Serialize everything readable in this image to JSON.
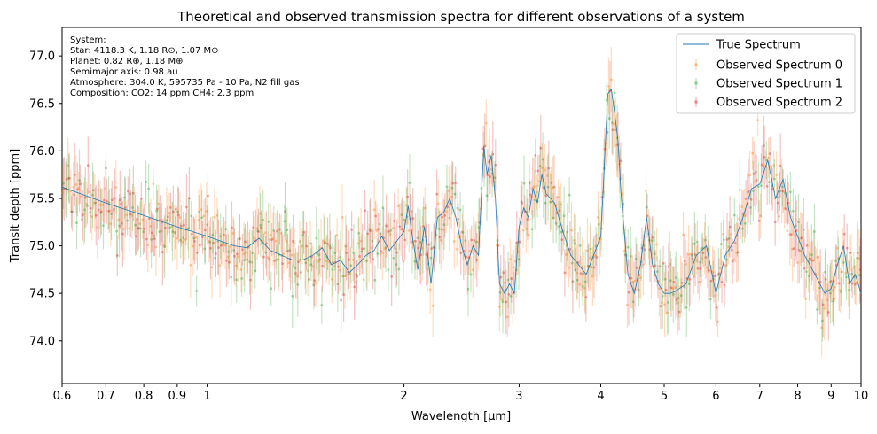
{
  "chart_data": {
    "type": "scatter",
    "title": "Theoretical and observed transmission spectra for different observations of a system",
    "xlabel": "Wavelength [μm]",
    "ylabel": "Transit depth [ppm]",
    "xscale": "log",
    "xlim": [
      0.6,
      10
    ],
    "ylim": [
      73.55,
      77.3
    ],
    "xticks": [
      0.6,
      0.7,
      0.8,
      0.9,
      1,
      2,
      3,
      4,
      5,
      6,
      7,
      8,
      9,
      10
    ],
    "xtick_labels": [
      "0.6",
      "0.7",
      "0.8",
      "0.9",
      "1",
      "2",
      "3",
      "4",
      "5",
      "6",
      "7",
      "8",
      "9",
      "10"
    ],
    "yticks": [
      74.0,
      74.5,
      75.0,
      75.5,
      76.0,
      76.5,
      77.0
    ],
    "ytick_labels": [
      "74.0",
      "74.5",
      "75.0",
      "75.5",
      "76.0",
      "76.5",
      "77.0"
    ],
    "grid": false,
    "legend_position": "top-right",
    "info_box": {
      "position": "top-left",
      "lines": [
        "System:",
        "Star: 4118.3 K, 1.18 R⊙, 1.07 M⊙",
        "Planet: 0.82 R⊕, 1.18 M⊕",
        "Semimajor axis: 0.98 au",
        "Atmosphere: 304.0 K, 595735 Pa - 10 Pa, N2 fill gas",
        "Composition: CO2: 14 ppm CH4: 2.3 ppm"
      ]
    },
    "true_spectrum": {
      "name": "True Spectrum",
      "color": "#1f77b4",
      "x": [
        0.6,
        0.7,
        0.8,
        0.9,
        1.0,
        1.05,
        1.1,
        1.15,
        1.2,
        1.25,
        1.3,
        1.35,
        1.4,
        1.45,
        1.5,
        1.55,
        1.6,
        1.65,
        1.7,
        1.75,
        1.8,
        1.85,
        1.9,
        1.95,
        2.0,
        2.03,
        2.06,
        2.1,
        2.15,
        2.2,
        2.25,
        2.3,
        2.35,
        2.4,
        2.45,
        2.5,
        2.55,
        2.6,
        2.65,
        2.68,
        2.72,
        2.76,
        2.8,
        2.85,
        2.9,
        2.95,
        3.0,
        3.05,
        3.1,
        3.15,
        3.2,
        3.25,
        3.3,
        3.35,
        3.4,
        3.5,
        3.6,
        3.7,
        3.8,
        3.9,
        4.0,
        4.1,
        4.15,
        4.2,
        4.25,
        4.3,
        4.35,
        4.4,
        4.5,
        4.6,
        4.7,
        4.8,
        4.9,
        5.0,
        5.1,
        5.2,
        5.4,
        5.6,
        5.8,
        6.0,
        6.2,
        6.4,
        6.6,
        6.8,
        7.0,
        7.2,
        7.4,
        7.6,
        7.8,
        8.0,
        8.2,
        8.5,
        8.8,
        9.0,
        9.2,
        9.4,
        9.6,
        9.8,
        10.0
      ],
      "y": [
        75.62,
        75.45,
        75.32,
        75.2,
        75.1,
        75.05,
        75.0,
        74.98,
        75.08,
        74.95,
        74.9,
        74.85,
        74.85,
        74.9,
        74.98,
        74.8,
        74.85,
        74.72,
        74.8,
        74.9,
        74.95,
        75.1,
        74.95,
        75.05,
        75.15,
        75.42,
        75.1,
        74.75,
        75.2,
        74.6,
        75.3,
        75.35,
        75.5,
        75.3,
        75.0,
        74.8,
        75.0,
        74.9,
        76.05,
        75.75,
        75.95,
        75.5,
        74.6,
        74.5,
        74.6,
        74.5,
        75.2,
        75.4,
        75.3,
        75.6,
        75.45,
        75.75,
        75.55,
        75.5,
        75.45,
        75.15,
        74.9,
        74.8,
        74.7,
        74.9,
        75.1,
        76.6,
        76.65,
        76.4,
        76.1,
        75.5,
        75.1,
        74.7,
        74.5,
        74.8,
        75.3,
        74.8,
        74.6,
        74.5,
        74.5,
        74.52,
        74.6,
        74.9,
        75.0,
        74.5,
        74.9,
        75.05,
        75.3,
        75.6,
        75.65,
        75.9,
        75.5,
        75.7,
        75.3,
        75.1,
        74.9,
        74.7,
        74.5,
        74.55,
        74.8,
        75.0,
        74.6,
        74.7,
        74.5
      ]
    },
    "observed_series": [
      {
        "name": "Observed Spectrum 0",
        "color": "#ff7f0e"
      },
      {
        "name": "Observed Spectrum 1",
        "color": "#2ca02c"
      },
      {
        "name": "Observed Spectrum 2",
        "color": "#d62728"
      }
    ]
  }
}
